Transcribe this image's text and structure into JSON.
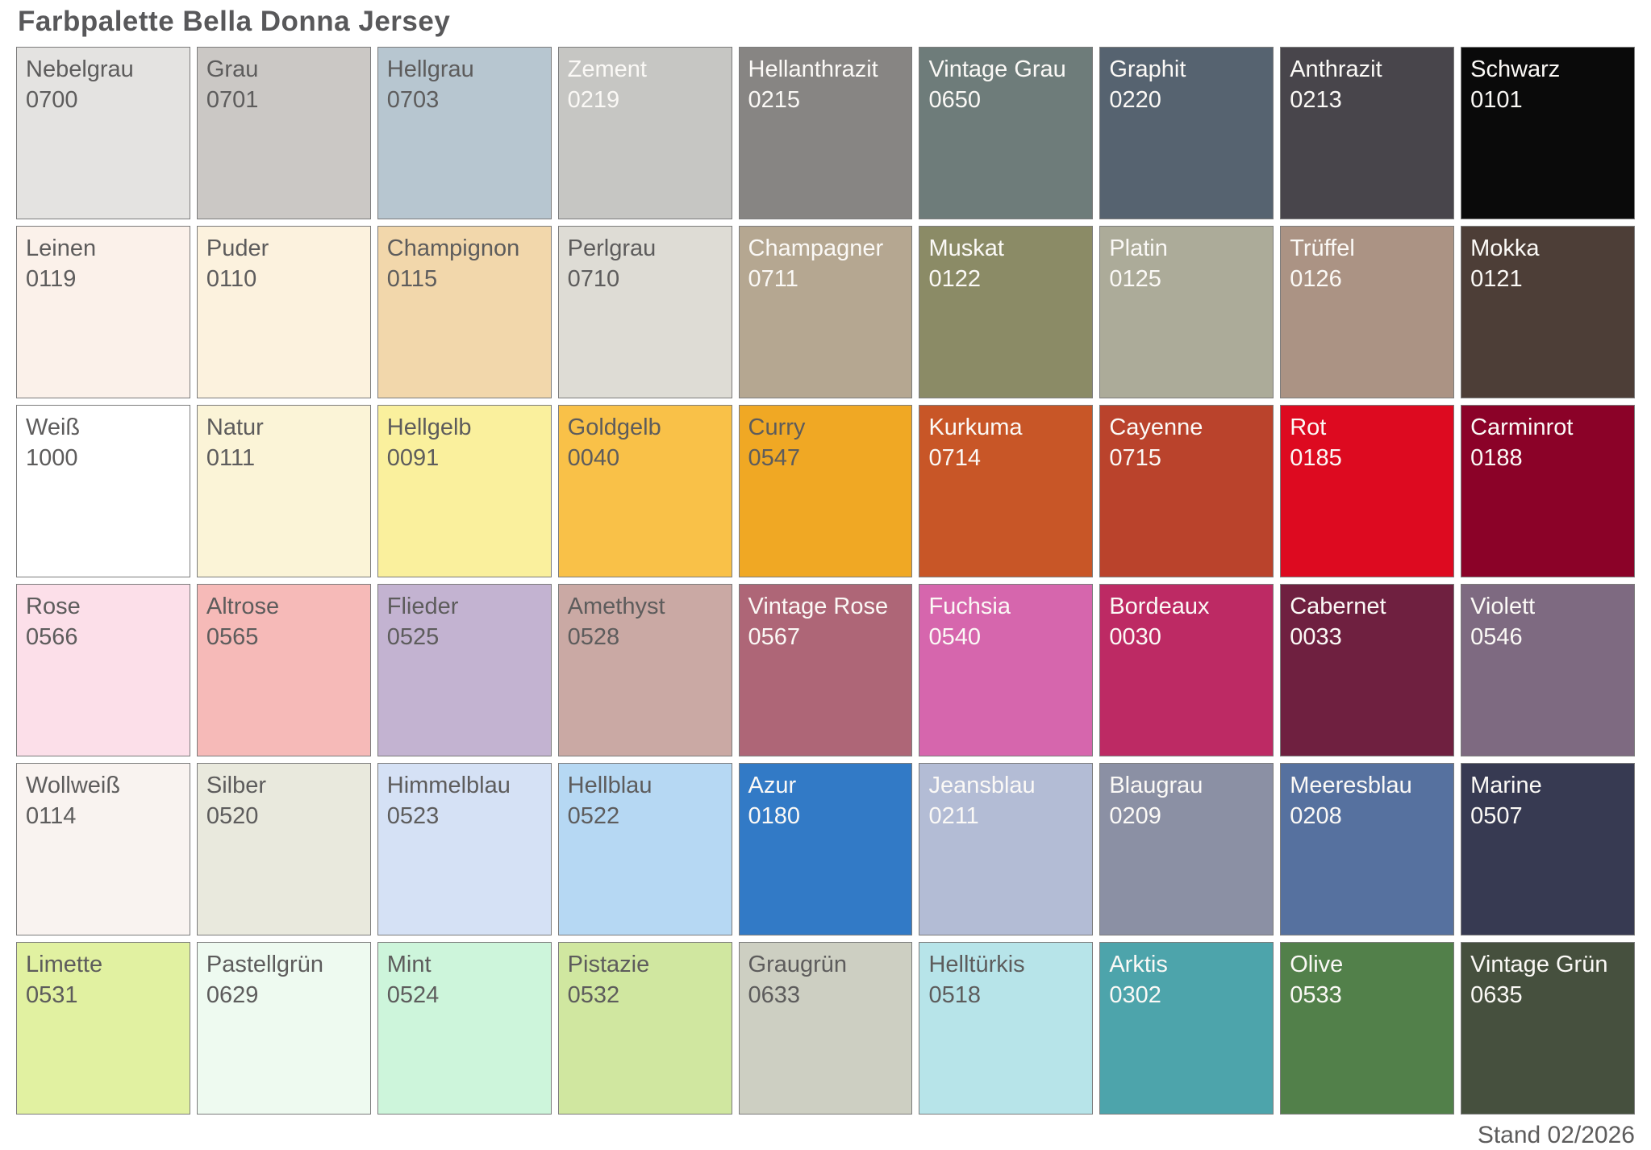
{
  "title": "Farbpalette Bella Donna Jersey",
  "footer": {
    "stand_label": "Stand 02/2026"
  },
  "palette": {
    "rows": 6,
    "cols": 9,
    "text_dark_color": "#5d5c5c",
    "text_light_color": "#fbf9f6",
    "border_color": "#7c7c7c",
    "swatches": [
      {
        "name": "Nebelgrau",
        "code": "0700",
        "color": "#e4e3e1",
        "text": "dark"
      },
      {
        "name": "Grau",
        "code": "0701",
        "color": "#cbc8c5",
        "text": "dark"
      },
      {
        "name": "Hellgrau",
        "code": "0703",
        "color": "#b7c6d0",
        "text": "dark"
      },
      {
        "name": "Zement",
        "code": "0219",
        "color": "#c6c6c3",
        "text": "light"
      },
      {
        "name": "Hellanthrazit",
        "code": "0215",
        "color": "#878583",
        "text": "light"
      },
      {
        "name": "Vintage Grau",
        "code": "0650",
        "color": "#6e7c7a",
        "text": "light"
      },
      {
        "name": "Graphit",
        "code": "0220",
        "color": "#566370",
        "text": "light"
      },
      {
        "name": "Anthrazit",
        "code": "0213",
        "color": "#48454b",
        "text": "light"
      },
      {
        "name": "Schwarz",
        "code": "0101",
        "color": "#0a0a0a",
        "text": "light"
      },
      {
        "name": "Leinen",
        "code": "0119",
        "color": "#fbf1ea",
        "text": "dark"
      },
      {
        "name": "Puder",
        "code": "0110",
        "color": "#fcf2de",
        "text": "dark"
      },
      {
        "name": "Champignon",
        "code": "0115",
        "color": "#f2d7ab",
        "text": "dark"
      },
      {
        "name": "Perlgrau",
        "code": "0710",
        "color": "#dedcd5",
        "text": "dark"
      },
      {
        "name": "Champagner",
        "code": "0711",
        "color": "#b5a791",
        "text": "light"
      },
      {
        "name": "Muskat",
        "code": "0122",
        "color": "#8b8b66",
        "text": "light"
      },
      {
        "name": "Platin",
        "code": "0125",
        "color": "#acab99",
        "text": "light"
      },
      {
        "name": "Trüffel",
        "code": "0126",
        "color": "#ab9384",
        "text": "light"
      },
      {
        "name": "Mokka",
        "code": "0121",
        "color": "#4d3e37",
        "text": "light"
      },
      {
        "name": "Weiß",
        "code": "1000",
        "color": "#ffffff",
        "text": "dark"
      },
      {
        "name": "Natur",
        "code": "0111",
        "color": "#fbf4d7",
        "text": "dark"
      },
      {
        "name": "Hellgelb",
        "code": "0091",
        "color": "#faf09d",
        "text": "dark"
      },
      {
        "name": "Goldgelb",
        "code": "0040",
        "color": "#f9c148",
        "text": "dark"
      },
      {
        "name": "Curry",
        "code": "0547",
        "color": "#f0a824",
        "text": "dark"
      },
      {
        "name": "Kurkuma",
        "code": "0714",
        "color": "#c85627",
        "text": "light"
      },
      {
        "name": "Cayenne",
        "code": "0715",
        "color": "#ba432c",
        "text": "light"
      },
      {
        "name": "Rot",
        "code": "0185",
        "color": "#dd0a20",
        "text": "light"
      },
      {
        "name": "Carminrot",
        "code": "0188",
        "color": "#8b0228",
        "text": "light"
      },
      {
        "name": "Rose",
        "code": "0566",
        "color": "#fcdfe9",
        "text": "dark"
      },
      {
        "name": "Altrose",
        "code": "0565",
        "color": "#f6bab8",
        "text": "dark"
      },
      {
        "name": "Flieder",
        "code": "0525",
        "color": "#c3b3d1",
        "text": "dark"
      },
      {
        "name": "Amethyst",
        "code": "0528",
        "color": "#caa9a4",
        "text": "dark"
      },
      {
        "name": "Vintage Rose",
        "code": "0567",
        "color": "#ae6677",
        "text": "light"
      },
      {
        "name": "Fuchsia",
        "code": "0540",
        "color": "#d666ad",
        "text": "light"
      },
      {
        "name": "Bordeaux",
        "code": "0030",
        "color": "#bd2a64",
        "text": "light"
      },
      {
        "name": "Cabernet",
        "code": "0033",
        "color": "#6f2040",
        "text": "light"
      },
      {
        "name": "Violett",
        "code": "0546",
        "color": "#7e6a81",
        "text": "light"
      },
      {
        "name": "Wollweiß",
        "code": "0114",
        "color": "#f9f3f0",
        "text": "dark"
      },
      {
        "name": "Silber",
        "code": "0520",
        "color": "#e9e9dd",
        "text": "dark"
      },
      {
        "name": "Himmelblau",
        "code": "0523",
        "color": "#d5e1f5",
        "text": "dark"
      },
      {
        "name": "Hellblau",
        "code": "0522",
        "color": "#b6d8f3",
        "text": "dark"
      },
      {
        "name": "Azur",
        "code": "0180",
        "color": "#327ac6",
        "text": "light"
      },
      {
        "name": "Jeansblau",
        "code": "0211",
        "color": "#b3bcd5",
        "text": "light"
      },
      {
        "name": "Blaugrau",
        "code": "0209",
        "color": "#8b90a4",
        "text": "light"
      },
      {
        "name": "Meeresblau",
        "code": "0208",
        "color": "#56719f",
        "text": "light"
      },
      {
        "name": "Marine",
        "code": "0507",
        "color": "#373a52",
        "text": "light"
      },
      {
        "name": "Limette",
        "code": "0531",
        "color": "#e1f1a1",
        "text": "dark"
      },
      {
        "name": "Pastellgrün",
        "code": "0629",
        "color": "#eefaf0",
        "text": "dark"
      },
      {
        "name": "Mint",
        "code": "0524",
        "color": "#cdf5db",
        "text": "dark"
      },
      {
        "name": "Pistazie",
        "code": "0532",
        "color": "#d0e7a0",
        "text": "dark"
      },
      {
        "name": "Graugrün",
        "code": "0633",
        "color": "#cdcfc2",
        "text": "dark"
      },
      {
        "name": "Helltürkis",
        "code": "0518",
        "color": "#b7e4e9",
        "text": "dark"
      },
      {
        "name": "Arktis",
        "code": "0302",
        "color": "#4da4ab",
        "text": "light"
      },
      {
        "name": "Olive",
        "code": "0533",
        "color": "#52804a",
        "text": "light"
      },
      {
        "name": "Vintage Grün",
        "code": "0635",
        "color": "#46503e",
        "text": "light"
      }
    ]
  }
}
